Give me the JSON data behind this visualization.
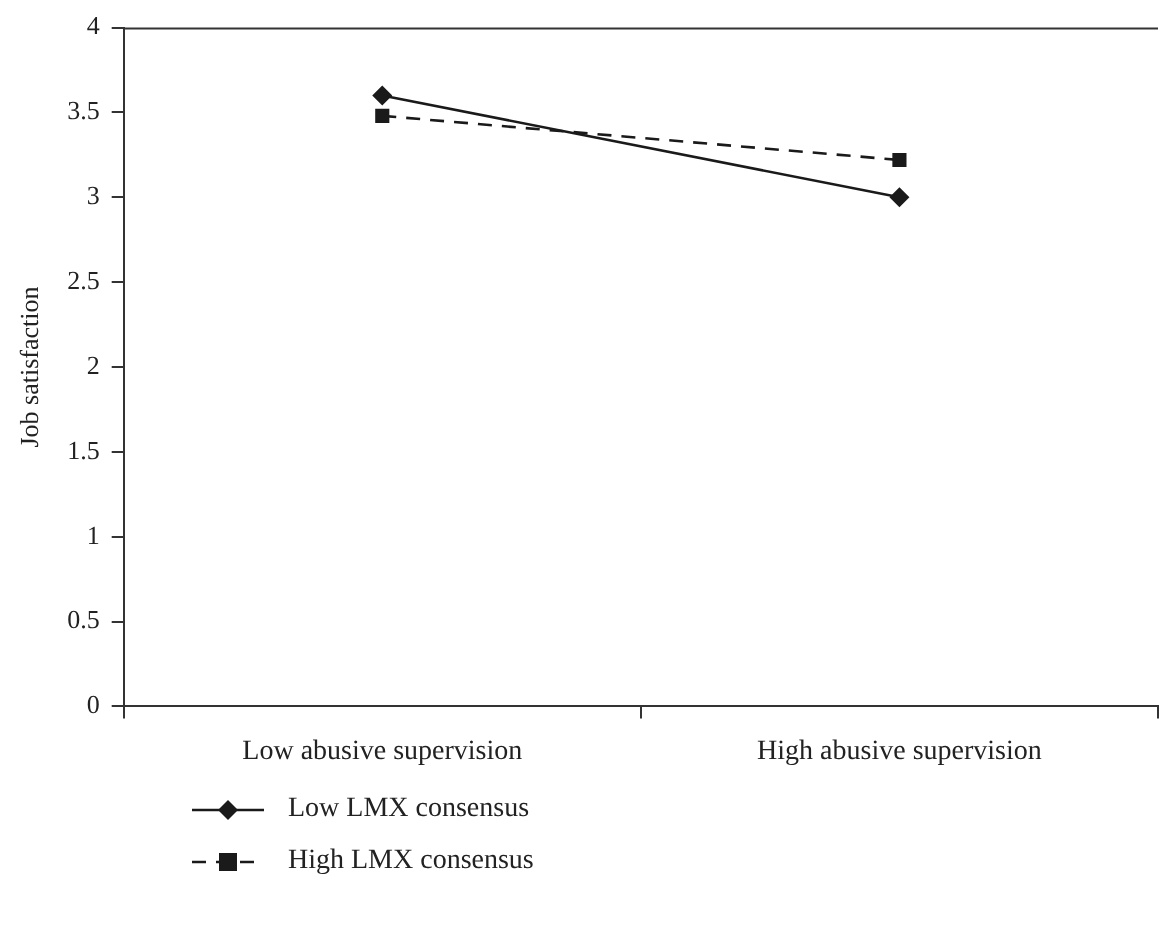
{
  "chart_data": {
    "type": "line",
    "ylabel": "Job satisfaction",
    "categories": [
      "Low abusive supervision",
      "High abusive supervision"
    ],
    "series": [
      {
        "name": "Low LMX consensus",
        "color": "#1a1a1a",
        "values": [
          3.6,
          3.0
        ],
        "marker": "diamond",
        "line_style": "solid"
      },
      {
        "name": "High LMX consensus",
        "color": "#1a1a1a",
        "values": [
          3.48,
          3.22
        ],
        "marker": "square",
        "line_style": "dashed"
      }
    ],
    "ylim": [
      0,
      4
    ],
    "yticks": [
      0,
      0.5,
      1,
      1.5,
      2,
      2.5,
      3,
      3.5,
      4
    ],
    "grid": false,
    "legend": "bottom left"
  }
}
